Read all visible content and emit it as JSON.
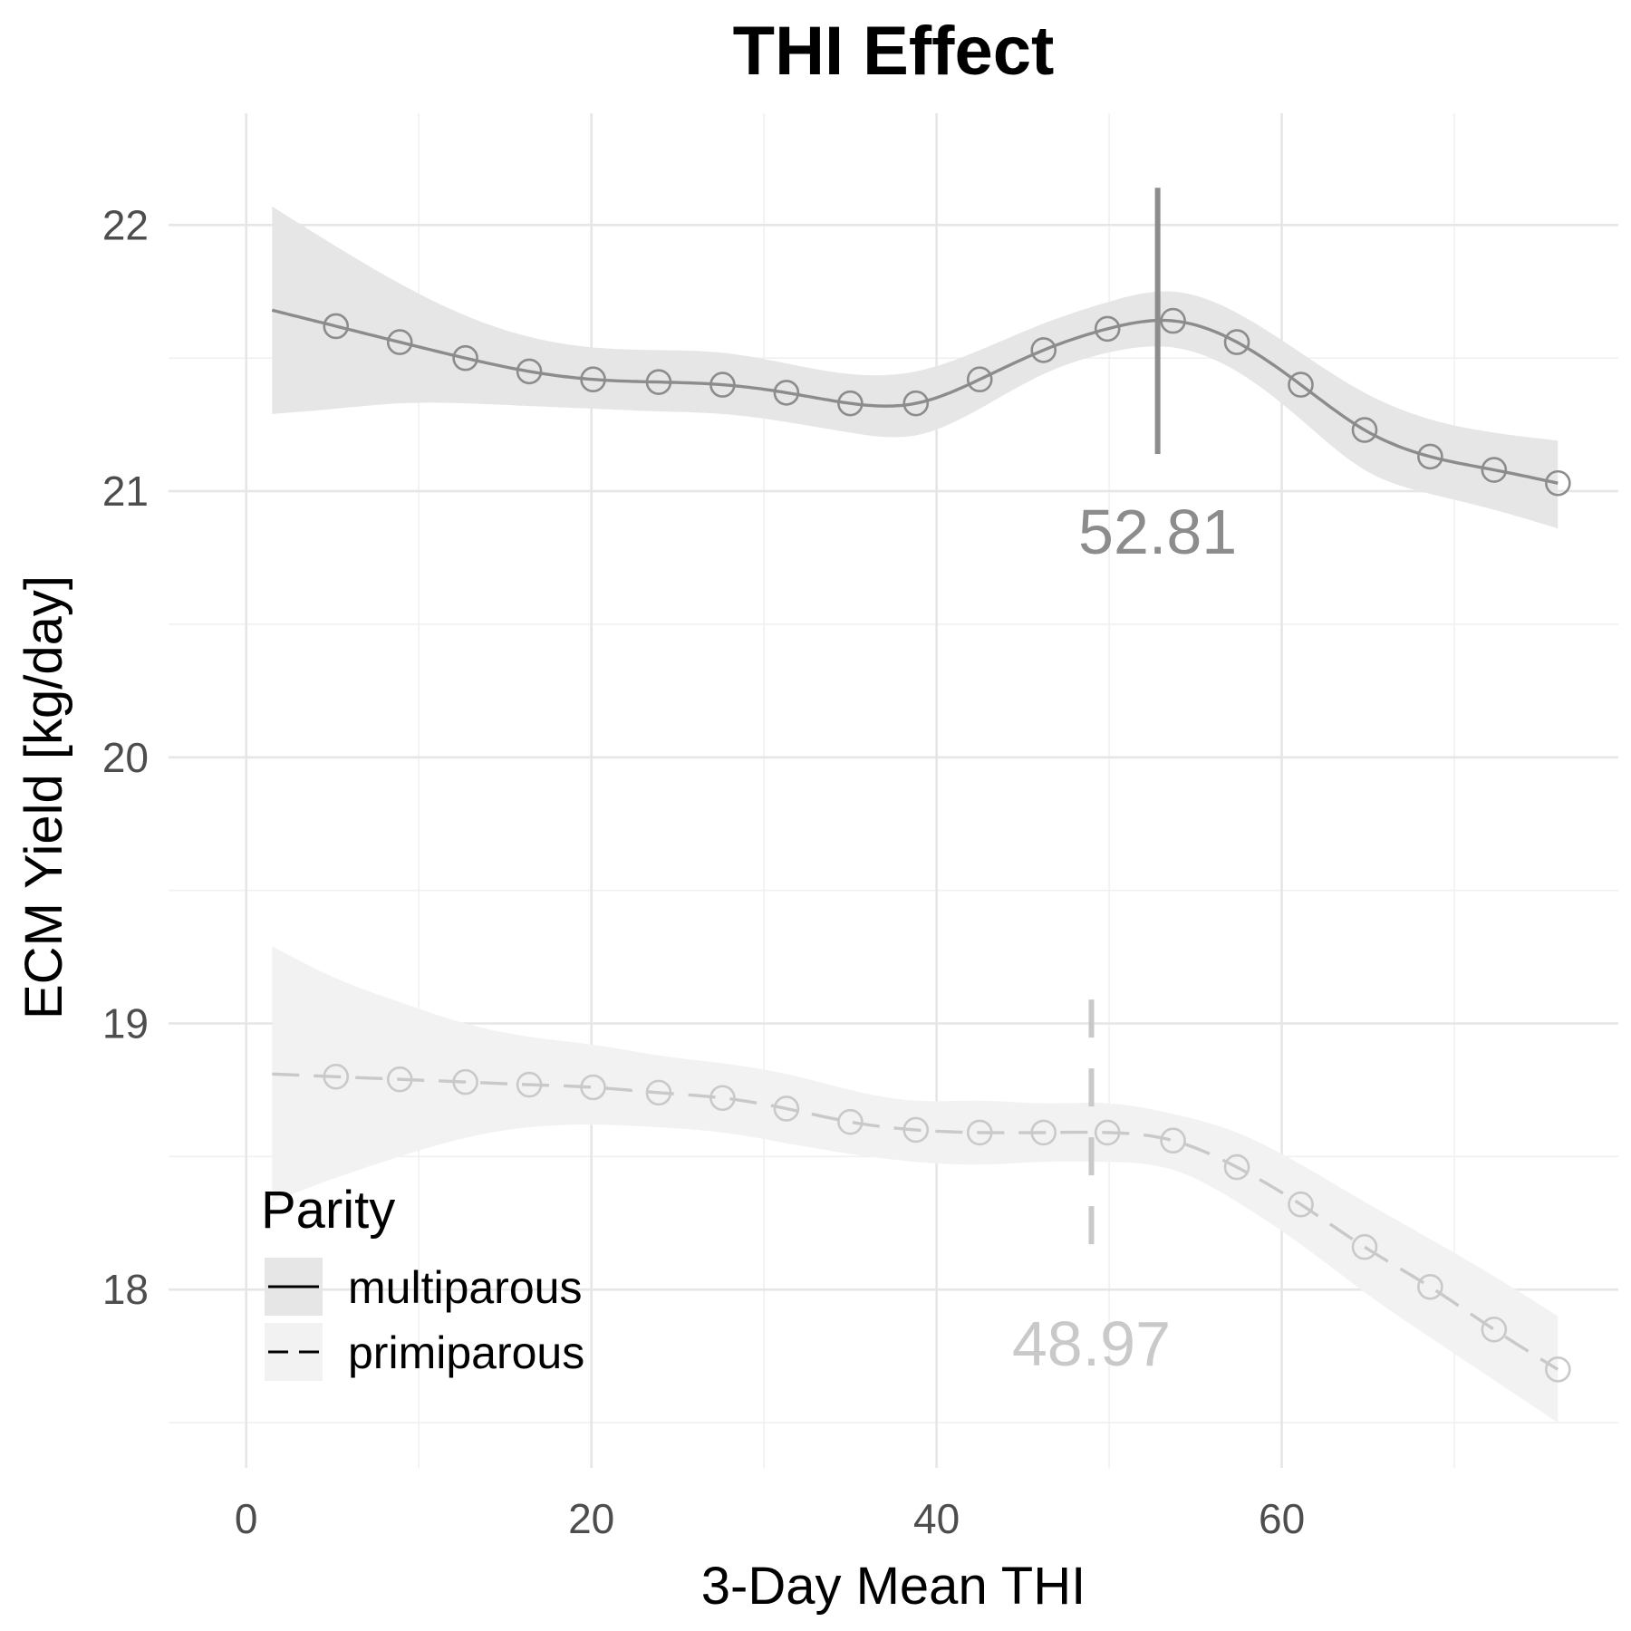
{
  "chart_data": {
    "type": "line",
    "title": "THI Effect",
    "xlabel": "3-Day Mean THI",
    "ylabel": "ECM Yield [kg/day]",
    "xlim": [
      -4.5,
      79.5
    ],
    "ylim": [
      17.33,
      22.42
    ],
    "x_ticks": [
      0,
      20,
      40,
      60
    ],
    "x_tick_labels": [
      "0",
      "20",
      "40",
      "60"
    ],
    "y_ticks": [
      18,
      19,
      20,
      21,
      22
    ],
    "y_tick_labels": [
      "18",
      "19",
      "20",
      "21",
      "22"
    ],
    "grid": true,
    "legend": {
      "title": "Parity",
      "placement": "bottom-left",
      "entries": [
        "multiparous",
        "primiparous"
      ]
    },
    "series": [
      {
        "name": "multiparous",
        "linestyle": "solid",
        "color": "#8c8c8c",
        "ribbon_color": "#e6e6e6",
        "x": [
          1.5,
          5.2,
          8.9,
          12.7,
          16.4,
          20.1,
          23.9,
          27.6,
          31.3,
          35.0,
          38.8,
          42.5,
          46.2,
          49.9,
          53.7,
          57.4,
          61.1,
          64.8,
          68.6,
          72.3,
          76.0
        ],
        "y": [
          21.68,
          21.62,
          21.56,
          21.5,
          21.45,
          21.42,
          21.41,
          21.4,
          21.37,
          21.33,
          21.33,
          21.42,
          21.53,
          21.61,
          21.64,
          21.56,
          21.4,
          21.23,
          21.13,
          21.08,
          21.03
        ],
        "lower": [
          21.29,
          21.31,
          21.33,
          21.33,
          21.32,
          21.31,
          21.3,
          21.29,
          21.26,
          21.22,
          21.21,
          21.31,
          21.44,
          21.52,
          21.54,
          21.45,
          21.27,
          21.08,
          20.99,
          20.93,
          20.86
        ],
        "upper": [
          22.07,
          21.92,
          21.78,
          21.66,
          21.58,
          21.54,
          21.53,
          21.52,
          21.48,
          21.44,
          21.45,
          21.53,
          21.63,
          21.71,
          21.75,
          21.67,
          21.52,
          21.37,
          21.27,
          21.22,
          21.19
        ],
        "markers": [
          5.2,
          8.9,
          12.7,
          16.4,
          20.1,
          23.9,
          27.6,
          31.3,
          35.0,
          38.8,
          42.5,
          46.2,
          49.9,
          53.7,
          57.4,
          61.1,
          64.8,
          68.6,
          72.3,
          76.0
        ],
        "vline": {
          "x": 52.81,
          "ymin": 21.14,
          "ymax": 22.14,
          "label": "52.81"
        }
      },
      {
        "name": "primiparous",
        "linestyle": "dashed",
        "color": "#c9c9c9",
        "ribbon_color": "#f2f2f2",
        "x": [
          1.5,
          5.2,
          8.9,
          12.7,
          16.4,
          20.1,
          23.9,
          27.6,
          31.3,
          35.0,
          38.8,
          42.5,
          46.2,
          49.9,
          53.7,
          57.4,
          61.1,
          64.8,
          68.6,
          72.3,
          76.0
        ],
        "y": [
          18.81,
          18.8,
          18.79,
          18.78,
          18.77,
          18.76,
          18.74,
          18.72,
          18.68,
          18.63,
          18.6,
          18.59,
          18.59,
          18.59,
          18.56,
          18.46,
          18.32,
          18.16,
          18.01,
          17.85,
          17.7
        ],
        "lower": [
          18.33,
          18.42,
          18.5,
          18.57,
          18.61,
          18.62,
          18.61,
          18.59,
          18.55,
          18.51,
          18.48,
          18.47,
          18.48,
          18.48,
          18.45,
          18.33,
          18.17,
          17.99,
          17.82,
          17.66,
          17.5
        ],
        "upper": [
          19.29,
          19.17,
          19.08,
          19.0,
          18.95,
          18.92,
          18.88,
          18.85,
          18.81,
          18.75,
          18.71,
          18.71,
          18.7,
          18.7,
          18.66,
          18.59,
          18.47,
          18.33,
          18.19,
          18.05,
          17.9
        ],
        "markers": [
          5.2,
          8.9,
          12.7,
          16.4,
          20.1,
          23.9,
          27.6,
          31.3,
          35.0,
          38.8,
          42.5,
          46.2,
          49.9,
          53.7,
          57.4,
          61.1,
          64.8,
          68.6,
          72.3,
          76.0
        ],
        "vline": {
          "x": 48.97,
          "ymin": 18.09,
          "ymax": 19.09,
          "label": "48.97"
        }
      }
    ]
  }
}
